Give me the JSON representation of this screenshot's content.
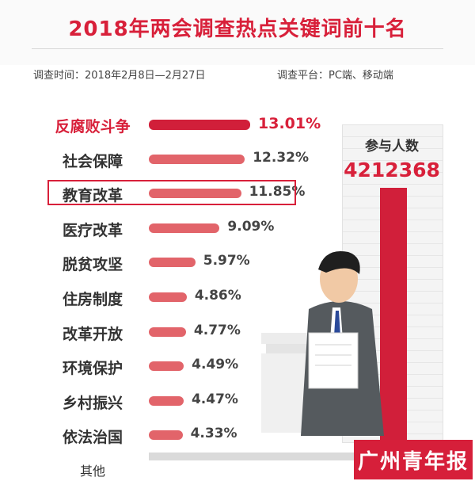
{
  "header": {
    "title": "2018年两会调查热点关键词前十名",
    "survey_time": "调查时间：2018年2月8日—2月27日",
    "survey_platform": "调查平台：PC端、移动端"
  },
  "participants": {
    "label": "参与人数",
    "count": "4212368"
  },
  "watermark": "广州青年报",
  "colors": {
    "accent": "#d8203a",
    "bar": "#e2646a",
    "top_bar": "#d11f3a",
    "other_bar": "#dadada"
  },
  "chart_data": {
    "type": "bar",
    "orientation": "horizontal",
    "categories": [
      "反腐败斗争",
      "社会保障",
      "教育改革",
      "医疗改革",
      "脱贫攻坚",
      "住房制度",
      "改革开放",
      "环境保护",
      "乡村振兴",
      "依法治国",
      "其他"
    ],
    "values": [
      13.01,
      12.32,
      11.85,
      9.09,
      5.97,
      4.86,
      4.77,
      4.49,
      4.47,
      4.33,
      null
    ],
    "value_labels": [
      "13.01%",
      "12.32%",
      "11.85%",
      "9.09%",
      "5.97%",
      "4.86%",
      "4.77%",
      "4.49%",
      "4.47%",
      "4.33%",
      ""
    ],
    "highlighted": "教育改革",
    "grid": false
  }
}
